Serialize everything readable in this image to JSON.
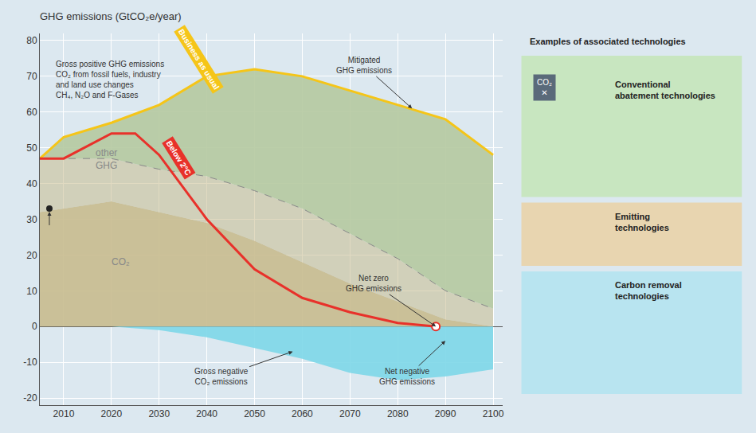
{
  "chart_data": {
    "type": "area",
    "title": "GHG emissions (GtCO₂e/year)",
    "background_color": "#dce8f0",
    "xlim": [
      2005,
      2102
    ],
    "ylim": [
      -22,
      82
    ],
    "xticks": [
      2010,
      2020,
      2030,
      2040,
      2050,
      2060,
      2070,
      2080,
      2090,
      2100
    ],
    "yticks": [
      -20,
      -10,
      0,
      10,
      20,
      30,
      40,
      50,
      60,
      70,
      80
    ],
    "grid": true,
    "series": [
      {
        "type": "area",
        "x": [
          2005,
          2010,
          2020,
          2030,
          2040,
          2050,
          2060,
          2070,
          2080,
          2090,
          2100
        ],
        "values": [
          32,
          33,
          35,
          32,
          29,
          24,
          18,
          12,
          7,
          2,
          0
        ],
        "color": "#c8bb8e"
      },
      {
        "type": "area",
        "x": [
          2005,
          2010,
          2020,
          2030,
          2040,
          2050,
          2060,
          2070,
          2080,
          2090,
          2100
        ],
        "values": [
          47,
          47,
          47,
          44,
          42,
          38,
          33,
          26,
          19,
          10,
          5
        ],
        "color": "#c8bb8e",
        "line_style": "dashed"
      },
      {
        "type": "area",
        "x": [
          2005,
          2010,
          2020,
          2030,
          2040,
          2050,
          2060,
          2070,
          2080,
          2090,
          2100
        ],
        "values": [
          47,
          53,
          57,
          62,
          70,
          72,
          70,
          66,
          62,
          58,
          48
        ],
        "color": "#b5c9a0"
      },
      {
        "type": "area",
        "x": [
          2005,
          2010,
          2020,
          2030,
          2040,
          2050,
          2060,
          2070,
          2080,
          2090,
          2100
        ],
        "values": [
          0,
          0,
          0,
          -1,
          -3,
          -6,
          -9,
          -13,
          -15,
          -14,
          -12
        ],
        "color": "#7dd7e8"
      },
      {
        "type": "line",
        "x": [
          2005,
          2010,
          2020,
          2030,
          2040,
          2050,
          2060,
          2070,
          2080,
          2090,
          2100
        ],
        "values": [
          47,
          53,
          57,
          62,
          70,
          72,
          70,
          66,
          62,
          58,
          48
        ],
        "color": "#f5c518"
      },
      {
        "type": "line",
        "x": [
          2005,
          2010,
          2020,
          2025,
          2030,
          2040,
          2050,
          2060,
          2070,
          2080,
          2088
        ],
        "values": [
          47,
          47,
          54,
          54,
          48,
          30,
          16,
          8,
          4,
          1,
          0
        ],
        "color": "#e8312a"
      }
    ],
    "line_labels": [
      {
        "text": "Business as usual",
        "x": 2033,
        "y": 65,
        "color": "#f5c518"
      },
      {
        "text": "Below 2°C",
        "x": 2030.5,
        "y": 41,
        "color": "#e8312a"
      }
    ],
    "markers": [
      {
        "x": 2007,
        "y": 33,
        "color": "#222222",
        "marker": "dot",
        "arrow_from": {
          "x": 2007,
          "y": 28
        }
      },
      {
        "x": 2088,
        "y": 0,
        "color": "#e8312a",
        "marker": "ring"
      }
    ],
    "annotations": [
      {
        "text": "Mitigated\nGHG emissions",
        "x": 2083,
        "y": 61,
        "text_x": 2073,
        "text_y": 73
      },
      {
        "text": "Net zero\nGHG emissions",
        "x": 2088,
        "y": 0,
        "text_x": 2075,
        "text_y": 12
      },
      {
        "text": "Gross negative\nCO₂ emissions",
        "x": 2058,
        "y": -7,
        "text_x": 2043,
        "text_y": -14
      },
      {
        "text": "Net negative\nGHG emissions",
        "x": 2090,
        "y": -4,
        "text_x": 2082,
        "text_y": -14
      }
    ],
    "notes": [
      {
        "text": "other\nGHG",
        "x": 2019,
        "y": 43,
        "color": "#888888"
      },
      {
        "text": "CO₂",
        "x": 2022,
        "y": 16,
        "color": "#888888"
      }
    ],
    "key_text": {
      "lines": [
        "Gross positive GHG emissions",
        "CO₂ from fossil fuels, industry",
        "and land use changes",
        "CH₄, N₂O and F-Gases"
      ],
      "x": 2008,
      "y": 75
    },
    "side_panel": {
      "title": "Examples of associated technologies",
      "icon": {
        "text": "CO₂\n✕",
        "color": "#5a6a7a"
      },
      "panels": [
        {
          "label": "Conventional\nabatement technologies",
          "color": "#c8e6c0"
        },
        {
          "label": "Emitting\ntechnologies",
          "color": "#e8d5b0"
        },
        {
          "label": "Carbon removal\ntechnologies",
          "color": "#b8e4f0"
        }
      ]
    }
  }
}
